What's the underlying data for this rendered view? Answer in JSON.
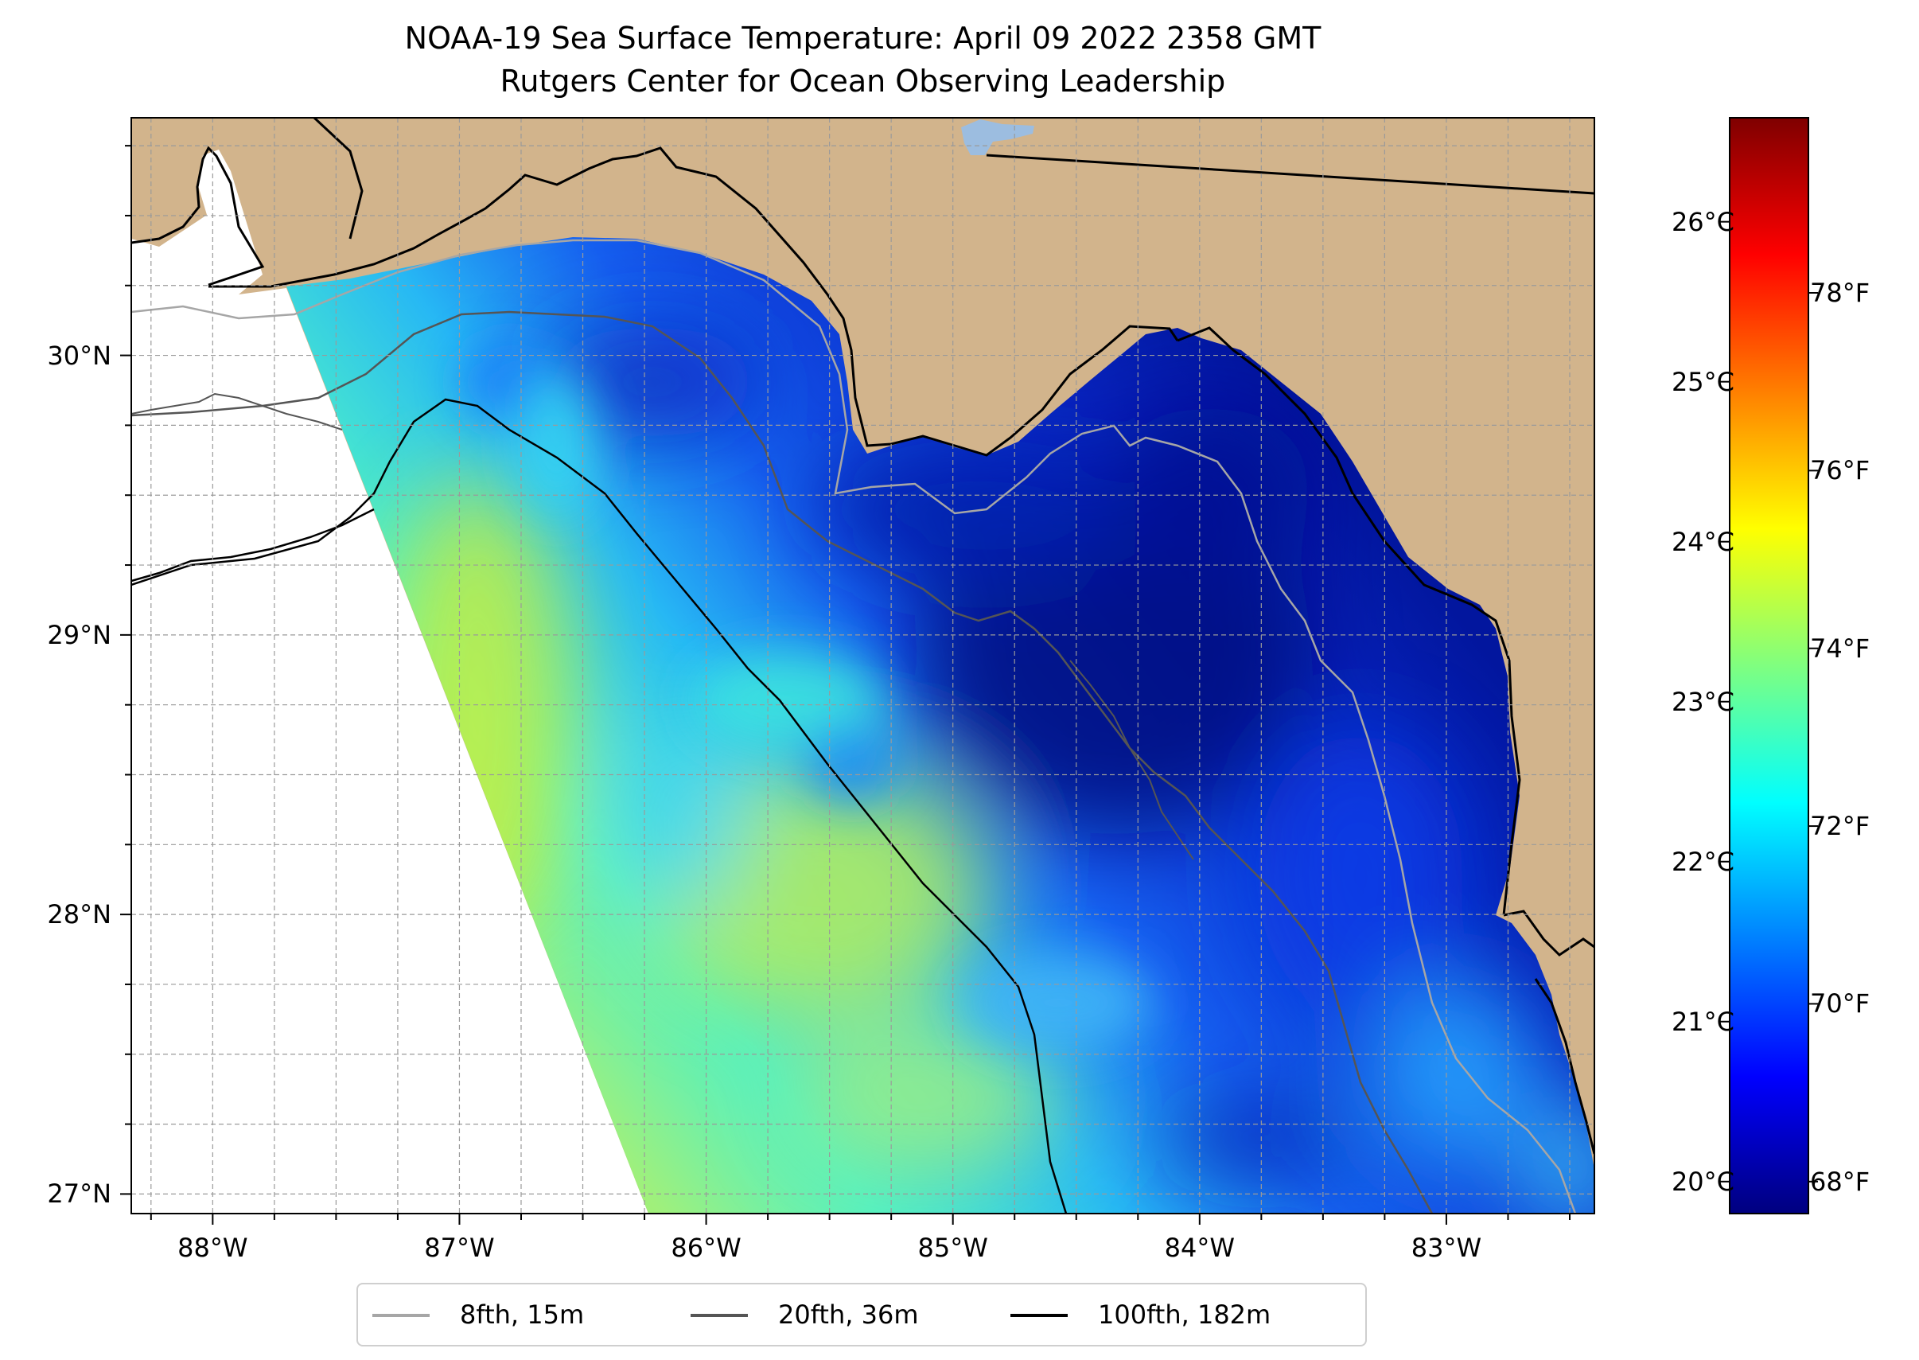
{
  "title": {
    "line1": "NOAA-19 Sea Surface Temperature: April 09 2022 2358 GMT",
    "line2": "Rutgers Center for Ocean Observing Leadership"
  },
  "map": {
    "lon_range": [
      -88.33,
      -82.4
    ],
    "lat_range": [
      26.93,
      30.85
    ],
    "lat_ticks": [
      {
        "value": 30,
        "label": "30°N"
      },
      {
        "value": 29,
        "label": "29°N"
      },
      {
        "value": 28,
        "label": "28°N"
      },
      {
        "value": 27,
        "label": "27°N"
      }
    ],
    "lon_ticks": [
      {
        "value": -88,
        "label": "88°W"
      },
      {
        "value": -87,
        "label": "87°W"
      },
      {
        "value": -86,
        "label": "86°W"
      },
      {
        "value": -85,
        "label": "85°W"
      },
      {
        "value": -84,
        "label": "84°W"
      },
      {
        "value": -83,
        "label": "83°W"
      }
    ],
    "gridlines": true,
    "land_color": "#d2b48c",
    "lake_color": "#9cbde0",
    "no_data_color": "#ffffff"
  },
  "colorbar": {
    "colormap": "jet",
    "celsius_range": [
      19.8,
      26.65
    ],
    "celsius_ticks": [
      {
        "value": 26,
        "label": "26°C"
      },
      {
        "value": 25,
        "label": "25°C"
      },
      {
        "value": 24,
        "label": "24°C"
      },
      {
        "value": 23,
        "label": "23°C"
      },
      {
        "value": 22,
        "label": "22°C"
      },
      {
        "value": 21,
        "label": "21°C"
      },
      {
        "value": 20,
        "label": "20°C"
      }
    ],
    "fahrenheit_ticks": [
      {
        "value": 78,
        "label": "78°F"
      },
      {
        "value": 76,
        "label": "76°F"
      },
      {
        "value": 74,
        "label": "74°F"
      },
      {
        "value": 72,
        "label": "72°F"
      },
      {
        "value": 70,
        "label": "70°F"
      },
      {
        "value": 68,
        "label": "68°F"
      }
    ]
  },
  "legend": {
    "placement": "bottom-center",
    "items": [
      {
        "label": "8fth, 15m",
        "color": "#a6a6a6"
      },
      {
        "label": "20fth, 36m",
        "color": "#555555"
      },
      {
        "label": "100fth, 182m",
        "color": "#000000"
      }
    ]
  }
}
